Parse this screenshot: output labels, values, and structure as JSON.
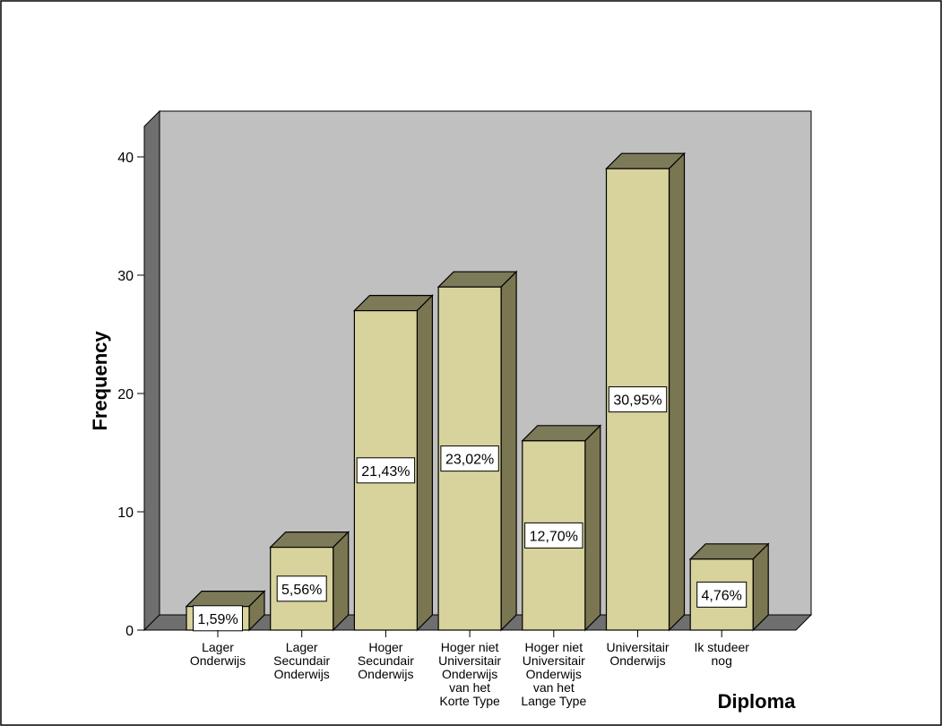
{
  "chart_data": {
    "type": "bar",
    "title": "",
    "xlabel": "Diploma",
    "ylabel": "Frequency",
    "ylim": [
      0,
      40
    ],
    "yticks": [
      0,
      10,
      20,
      30,
      40
    ],
    "grid": false,
    "legend": "none",
    "categories": [
      [
        "Lager",
        "Onderwijs"
      ],
      [
        "Lager",
        "Secundair",
        "Onderwijs"
      ],
      [
        "Hoger",
        "Secundair",
        "Onderwijs"
      ],
      [
        "Hoger niet",
        "Universitair",
        "Onderwijs",
        "van het",
        "Korte Type"
      ],
      [
        "Hoger niet",
        "Universitair",
        "Onderwijs",
        "van het",
        "Lange Type"
      ],
      [
        "Universitair",
        "Onderwijs"
      ],
      [
        "Ik studeer",
        "nog"
      ]
    ],
    "values": [
      2,
      7,
      27,
      29,
      16,
      39,
      6
    ],
    "data_labels": [
      "1,59%",
      "5,56%",
      "21,43%",
      "23,02%",
      "12,70%",
      "30,95%",
      "4,76%"
    ],
    "colors": {
      "bar_front": "#d8d29c",
      "bar_top": "#7c7a58",
      "bar_side": "#7a7651",
      "back_wall": "#c0c0c0",
      "side_wall": "#6f6f6f",
      "floor": "#6f6f6f"
    }
  }
}
